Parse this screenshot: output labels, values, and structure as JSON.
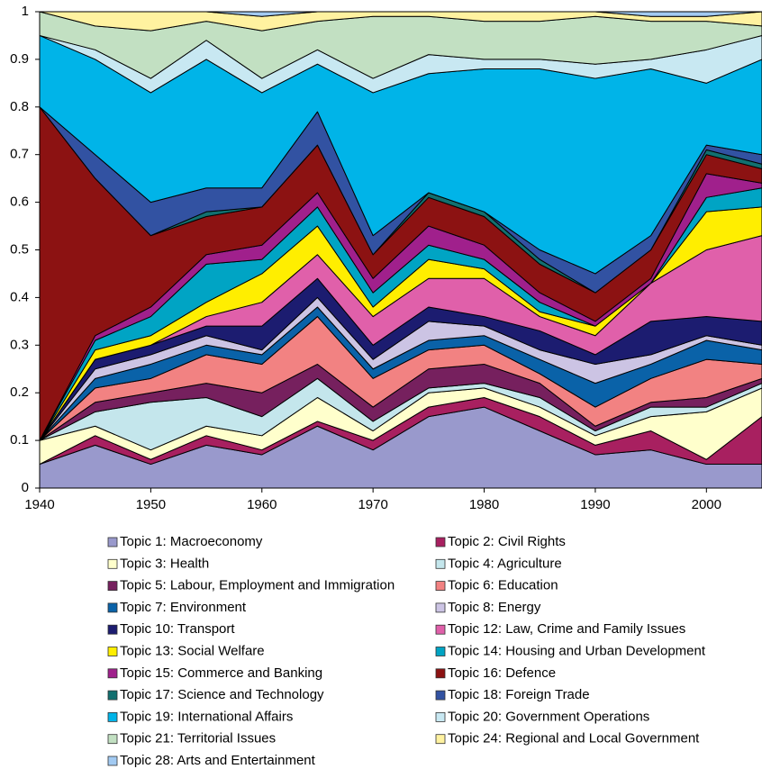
{
  "chart_data": {
    "type": "stacked-area",
    "x": [
      1940,
      1945,
      1950,
      1955,
      1960,
      1965,
      1970,
      1975,
      1980,
      1985,
      1990,
      1995,
      2000,
      2005
    ],
    "xlim": [
      1940,
      2005
    ],
    "xticks": [
      1940,
      1950,
      1960,
      1970,
      1980,
      1990,
      2000
    ],
    "ylim": [
      0,
      1
    ],
    "yticks": [
      0,
      0.1,
      0.2,
      0.3,
      0.4,
      0.5,
      0.6,
      0.7,
      0.8,
      0.9,
      1
    ],
    "series": [
      {
        "name": "Topic 1: Macroeconomy",
        "color": "#9999cc",
        "values": [
          0.05,
          0.09,
          0.05,
          0.09,
          0.07,
          0.13,
          0.08,
          0.15,
          0.17,
          0.12,
          0.07,
          0.08,
          0.05,
          0.05
        ]
      },
      {
        "name": "Topic 2: Civil Rights",
        "color": "#a82060",
        "values": [
          0,
          0.02,
          0.01,
          0.02,
          0.01,
          0.01,
          0.02,
          0.02,
          0.02,
          0.03,
          0.02,
          0.04,
          0.01,
          0.1
        ]
      },
      {
        "name": "Topic 3: Health",
        "color": "#ffffcc",
        "values": [
          0.05,
          0.02,
          0.02,
          0.02,
          0.03,
          0.05,
          0.02,
          0.03,
          0.02,
          0.02,
          0.02,
          0.03,
          0.1,
          0.06
        ]
      },
      {
        "name": "Topic 4: Agriculture",
        "color": "#c4e6ec",
        "values": [
          0,
          0.03,
          0.1,
          0.06,
          0.04,
          0.04,
          0.02,
          0.01,
          0.01,
          0.02,
          0.01,
          0.02,
          0.01,
          0.01
        ]
      },
      {
        "name": "Topic 5: Labour, Employment and Immigration",
        "color": "#76205e",
        "values": [
          0,
          0.02,
          0.02,
          0.03,
          0.05,
          0.03,
          0.03,
          0.04,
          0.04,
          0.03,
          0.01,
          0.01,
          0.02,
          0.01
        ]
      },
      {
        "name": "Topic 6: Education",
        "color": "#f28282",
        "values": [
          0,
          0.03,
          0.03,
          0.06,
          0.06,
          0.1,
          0.06,
          0.04,
          0.04,
          0.02,
          0.04,
          0.05,
          0.08,
          0.03
        ]
      },
      {
        "name": "Topic 7: Environment",
        "color": "#0a62a8",
        "values": [
          0,
          0.02,
          0.03,
          0.02,
          0.02,
          0.02,
          0.02,
          0.02,
          0.02,
          0.03,
          0.05,
          0.03,
          0.04,
          0.03
        ]
      },
      {
        "name": "Topic 8: Energy",
        "color": "#ccc4e4",
        "values": [
          0,
          0.02,
          0.02,
          0.02,
          0.01,
          0.02,
          0.02,
          0.04,
          0.02,
          0.02,
          0.04,
          0.02,
          0.01,
          0.01
        ]
      },
      {
        "name": "Topic 10: Transport",
        "color": "#1c1c70",
        "values": [
          0,
          0.02,
          0.02,
          0.02,
          0.05,
          0.04,
          0.03,
          0.03,
          0.02,
          0.04,
          0.02,
          0.07,
          0.04,
          0.05
        ]
      },
      {
        "name": "Topic 12: Law, Crime and Family Issues",
        "color": "#e060aa",
        "values": [
          0,
          0,
          0,
          0.02,
          0.05,
          0.05,
          0.06,
          0.06,
          0.08,
          0.03,
          0.04,
          0.08,
          0.14,
          0.18
        ]
      },
      {
        "name": "Topic 13: Social Welfare",
        "color": "#ffee00",
        "values": [
          0,
          0.02,
          0.02,
          0.03,
          0.06,
          0.06,
          0.02,
          0.04,
          0.02,
          0.01,
          0.02,
          0,
          0.08,
          0.06
        ]
      },
      {
        "name": "Topic 14: Housing and Urban Development",
        "color": "#00a4c4",
        "values": [
          0,
          0.02,
          0.04,
          0.08,
          0.03,
          0.04,
          0.03,
          0.03,
          0.02,
          0.02,
          0,
          0,
          0.03,
          0.04
        ]
      },
      {
        "name": "Topic 15: Commerce and Banking",
        "color": "#a0208c",
        "values": [
          0,
          0.01,
          0.02,
          0.02,
          0.03,
          0.03,
          0.03,
          0.04,
          0.03,
          0.02,
          0.01,
          0.01,
          0.05,
          0.01
        ]
      },
      {
        "name": "Topic 16: Defence",
        "color": "#8c1212",
        "values": [
          0.7,
          0.33,
          0.15,
          0.08,
          0.08,
          0.1,
          0.05,
          0.06,
          0.06,
          0.06,
          0.06,
          0.06,
          0.04,
          0.03
        ]
      },
      {
        "name": "Topic 17: Science and Technology",
        "color": "#127070",
        "values": [
          0,
          0,
          0,
          0.01,
          0,
          0,
          0,
          0.01,
          0.01,
          0.01,
          0,
          0,
          0.01,
          0.01
        ]
      },
      {
        "name": "Topic 18: Foreign Trade",
        "color": "#3252a2",
        "values": [
          0,
          0.05,
          0.07,
          0.05,
          0.04,
          0.07,
          0.04,
          0,
          0,
          0.02,
          0.04,
          0.03,
          0.01,
          0.02
        ]
      },
      {
        "name": "Topic 19: International Affairs",
        "color": "#00b4e8",
        "values": [
          0.15,
          0.2,
          0.23,
          0.27,
          0.2,
          0.1,
          0.3,
          0.25,
          0.3,
          0.38,
          0.41,
          0.35,
          0.13,
          0.2
        ]
      },
      {
        "name": "Topic 20: Government Operations",
        "color": "#c8e8f2",
        "values": [
          0,
          0.02,
          0.03,
          0.04,
          0.03,
          0.03,
          0.03,
          0.04,
          0.02,
          0.02,
          0.03,
          0.02,
          0.07,
          0.05
        ]
      },
      {
        "name": "Topic 21: Territorial Issues",
        "color": "#c2e0c2",
        "values": [
          0.05,
          0.05,
          0.1,
          0.04,
          0.1,
          0.06,
          0.13,
          0.08,
          0.08,
          0.08,
          0.1,
          0.08,
          0.06,
          0.02
        ]
      },
      {
        "name": "Topic 24: Regional and Local Government",
        "color": "#fff2a0",
        "values": [
          0,
          0.03,
          0.04,
          0.02,
          0.03,
          0.02,
          0.01,
          0.01,
          0.02,
          0.02,
          0.01,
          0.01,
          0.01,
          0.03
        ]
      },
      {
        "name": "Topic 28: Arts and Entertainment",
        "color": "#a2caf2",
        "values": [
          0,
          0,
          0,
          0,
          0.01,
          0,
          0,
          0,
          0,
          0,
          0,
          0.01,
          0.01,
          0
        ]
      }
    ]
  }
}
